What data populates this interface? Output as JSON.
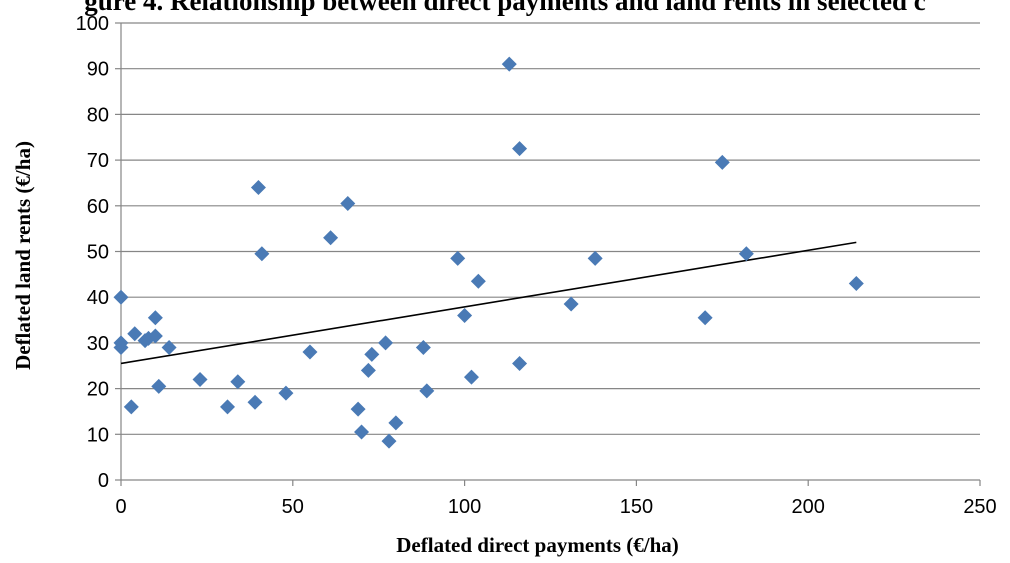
{
  "chart_data": {
    "type": "scatter",
    "title": "gure 4. Relationship between direct payments and land rents in selected c",
    "xlabel": "Deflated direct payments (€/ha)",
    "ylabel": "Deflated land rents (€/ha)",
    "xlim": [
      0,
      250
    ],
    "ylim": [
      0,
      100
    ],
    "xticks": [
      0,
      50,
      100,
      150,
      200,
      250
    ],
    "yticks": [
      0,
      10,
      20,
      30,
      40,
      50,
      60,
      70,
      80,
      90,
      100
    ],
    "grid": "horizontal",
    "marker": "diamond",
    "color": "#4a7ab5",
    "trendline": {
      "x": [
        0,
        214
      ],
      "y": [
        25.5,
        52
      ]
    },
    "series": [
      {
        "points": [
          [
            0,
            40
          ],
          [
            0,
            30
          ],
          [
            0,
            29
          ],
          [
            3,
            16
          ],
          [
            4,
            32
          ],
          [
            7,
            30.5
          ],
          [
            8,
            31
          ],
          [
            10,
            35.5
          ],
          [
            10,
            31.5
          ],
          [
            11,
            20.5
          ],
          [
            14,
            29
          ],
          [
            23,
            22
          ],
          [
            31,
            16
          ],
          [
            34,
            21.5
          ],
          [
            39,
            17
          ],
          [
            40,
            64
          ],
          [
            41,
            49.5
          ],
          [
            48,
            19
          ],
          [
            55,
            28
          ],
          [
            61,
            53
          ],
          [
            66,
            60.5
          ],
          [
            69,
            15.5
          ],
          [
            70,
            10.5
          ],
          [
            72,
            24
          ],
          [
            73,
            27.5
          ],
          [
            77,
            30
          ],
          [
            78,
            8.5
          ],
          [
            80,
            12.5
          ],
          [
            88,
            29
          ],
          [
            89,
            19.5
          ],
          [
            98,
            48.5
          ],
          [
            100,
            36
          ],
          [
            102,
            22.5
          ],
          [
            104,
            43.5
          ],
          [
            113,
            91
          ],
          [
            116,
            72.5
          ],
          [
            116,
            25.5
          ],
          [
            131,
            38.5
          ],
          [
            138,
            48.5
          ],
          [
            170,
            35.5
          ],
          [
            175,
            69.5
          ],
          [
            182,
            49.5
          ],
          [
            214,
            43
          ]
        ]
      }
    ]
  }
}
